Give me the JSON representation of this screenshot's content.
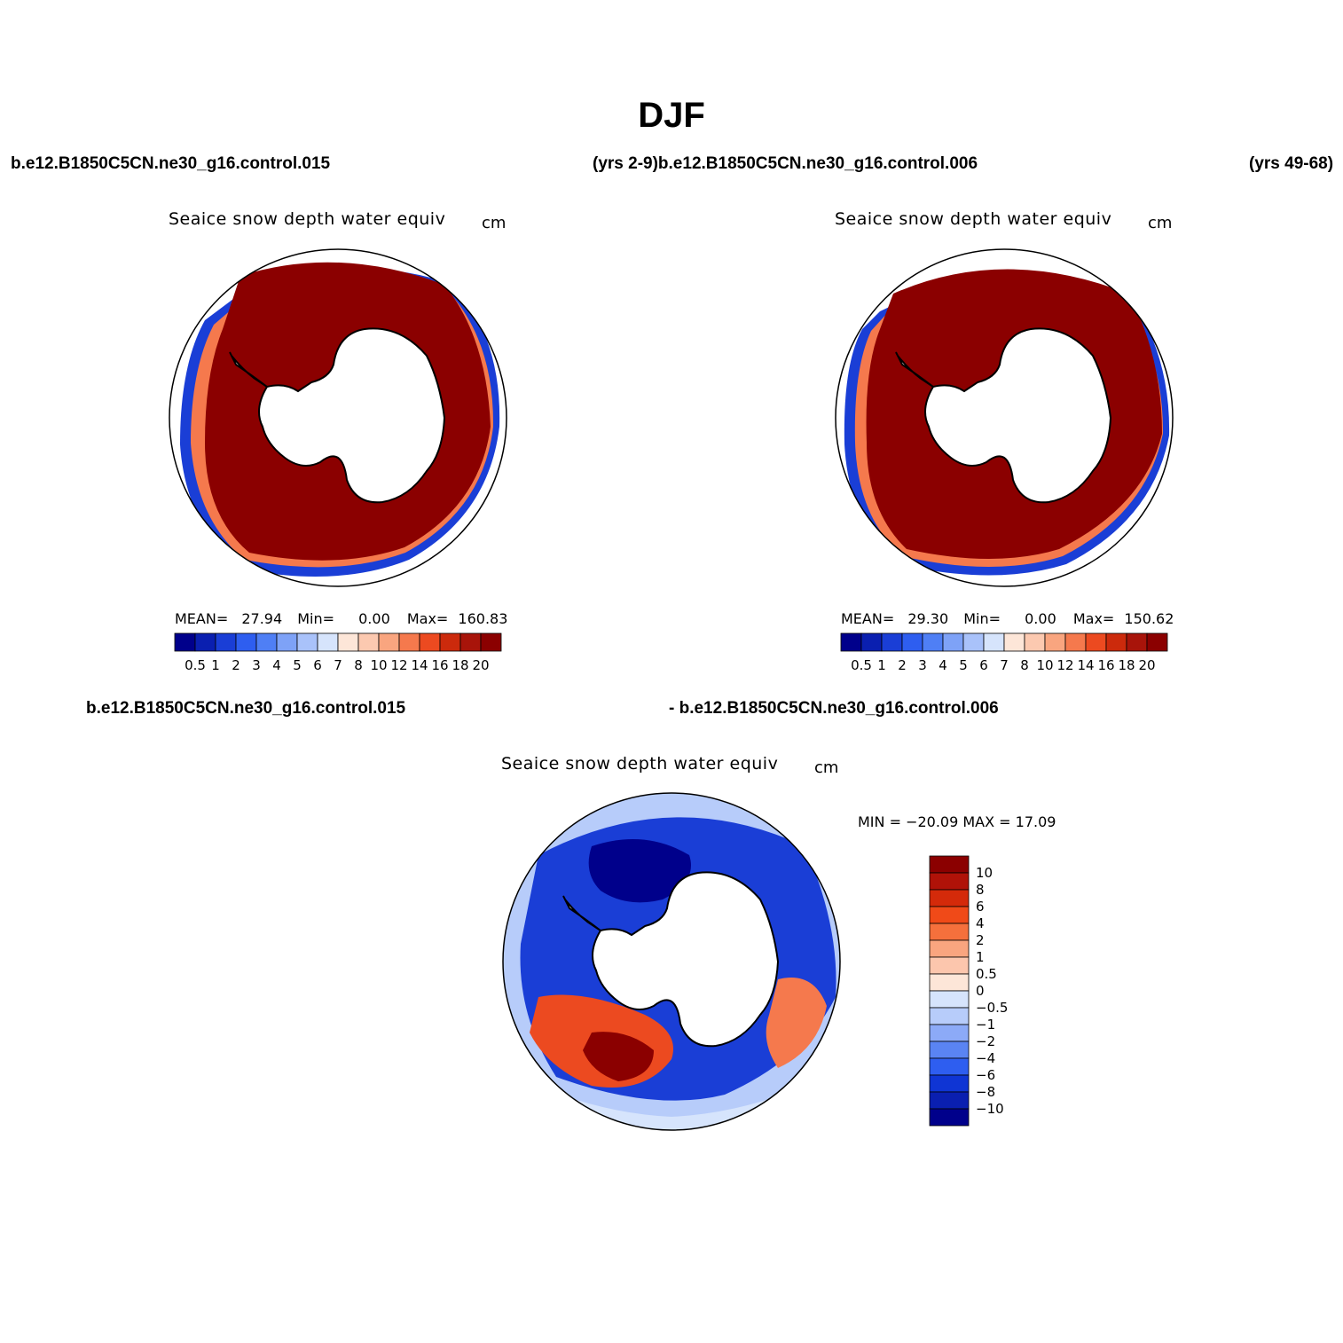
{
  "title": "DJF",
  "header": {
    "case_left": "b.e12.B1850C5CN.ne30_g16.control.015",
    "years_a": "(yrs 2-9)",
    "case_right": "b.e12.B1850C5CN.ne30_g16.control.006",
    "years_b": "(yrs 49-68)",
    "diff_left": "b.e12.B1850C5CN.ne30_g16.control.015",
    "diff_right": "- b.e12.B1850C5CN.ne30_g16.control.006"
  },
  "panels": [
    {
      "variable": "Seaice snow depth water equiv",
      "units": "cm",
      "mean_label": "MEAN=",
      "mean": "27.94",
      "min_label": "Min=",
      "min": "0.00",
      "max_label": "Max=",
      "max": "160.83"
    },
    {
      "variable": "Seaice snow depth water equiv",
      "units": "cm",
      "mean_label": "MEAN=",
      "mean": "29.30",
      "min_label": "Min=",
      "min": "0.00",
      "max_label": "Max=",
      "max": "150.62"
    }
  ],
  "diff_panel": {
    "variable": "Seaice snow depth water equiv",
    "units": "cm",
    "minmax": "MIN = −20.09  MAX =   17.09"
  },
  "colorbar_abs": {
    "labels": [
      "0.5",
      "1",
      "2",
      "3",
      "4",
      "5",
      "6",
      "7",
      "8",
      "10",
      "12",
      "14",
      "16",
      "18",
      "20"
    ],
    "colors": [
      "#00008b",
      "#0a1fb0",
      "#1a3ed6",
      "#2e5ef0",
      "#4f7ff5",
      "#7ea2f7",
      "#a9c2fa",
      "#d6e4fc",
      "#fde6d8",
      "#fcc9b0",
      "#f9a57f",
      "#f5794d",
      "#ec4a20",
      "#cc2a0c",
      "#a8140a",
      "#8b0000"
    ]
  },
  "colorbar_diff": {
    "labels": [
      "10",
      "8",
      "6",
      "4",
      "2",
      "1",
      "0.5",
      "0",
      "−0.5",
      "−1",
      "−2",
      "−4",
      "−6",
      "−8",
      "−10"
    ],
    "colors": [
      "#8b0000",
      "#b01208",
      "#d42a0a",
      "#f04a18",
      "#f5703c",
      "#f9a57f",
      "#fcc6ad",
      "#fde6d8",
      "#d6e4fc",
      "#b7ccfa",
      "#8caaf7",
      "#5a84f3",
      "#2e5ef0",
      "#0f35d4",
      "#0a1fb0",
      "#00008b"
    ]
  },
  "colors": {
    "ice_max": "#8b0000",
    "ice_edge_blue": "#1a3ed6",
    "land": "#ffffff"
  }
}
